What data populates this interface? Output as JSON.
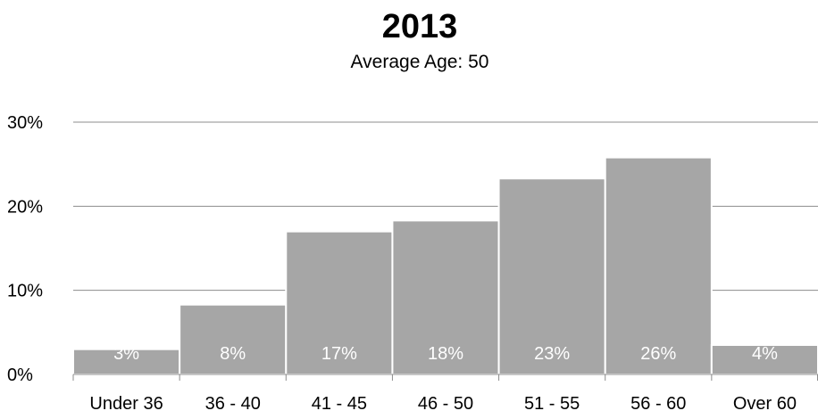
{
  "chart_data": {
    "type": "bar",
    "title": "2013",
    "subtitle": "Average Age: 50",
    "categories": [
      "Under 36",
      "36 - 40",
      "41 - 45",
      "46 - 50",
      "51 - 55",
      "56 - 60",
      "Over 60"
    ],
    "values": [
      3,
      8.3,
      17,
      18.3,
      23.3,
      25.8,
      3.5
    ],
    "data_labels": [
      "3%",
      "8%",
      "17%",
      "18%",
      "23%",
      "26%",
      "4%"
    ],
    "ylim": [
      0,
      30
    ],
    "yticks": [
      0,
      10,
      20,
      30
    ],
    "ytick_labels": [
      "0%",
      "10%",
      "20%",
      "30%"
    ],
    "grid": true,
    "legend": "none",
    "bar_color": "#a6a6a6",
    "label_color": "#ffffff"
  }
}
